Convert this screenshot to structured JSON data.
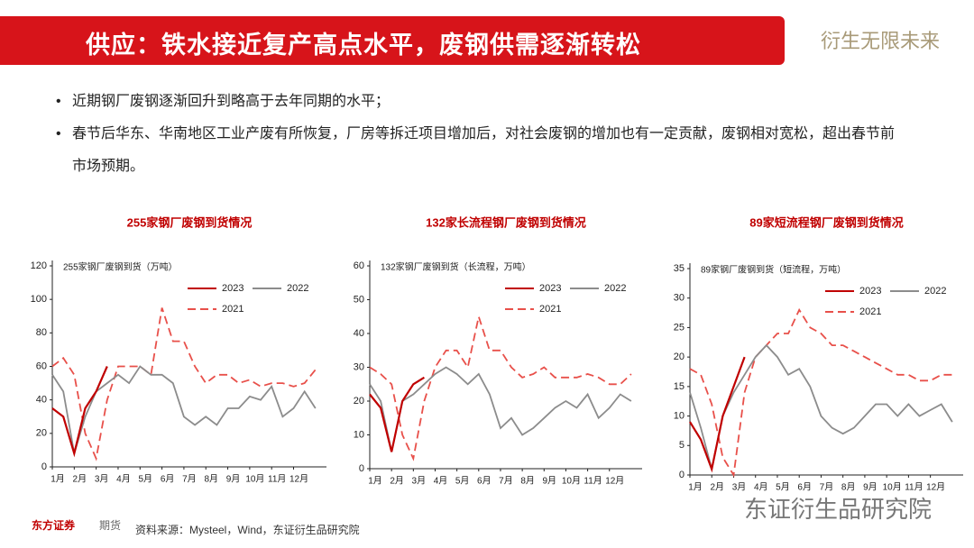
{
  "header": {
    "title": "供应：铁水接近复产高点水平，废钢供需逐渐转松",
    "slogan": "衍生无限未来"
  },
  "bullets": [
    "近期钢厂废钢逐渐回升到略高于去年同期的水平；",
    "春节后华东、华南地区工业产废有所恢复，厂房等拆迁项目增加后，对社会废钢的增加也有一定贡献，废钢相对宽松，超出春节前市场预期。"
  ],
  "chart_data": [
    {
      "type": "line",
      "title": "255家钢厂废钢到货情况",
      "subtitle": "255家钢厂废钢到货（万吨）",
      "x": [
        0,
        0.5,
        1,
        1.5,
        2,
        2.5,
        3,
        3.5,
        4,
        4.5,
        5,
        5.5,
        6,
        6.5,
        7,
        7.5,
        8,
        8.5,
        9,
        9.5,
        10,
        10.5,
        11,
        11.5,
        12
      ],
      "xlim": [
        0,
        12.5
      ],
      "xticks": [
        {
          "value": 0,
          "label": "1月"
        },
        {
          "value": 1,
          "label": "2月"
        },
        {
          "value": 2,
          "label": "3月"
        },
        {
          "value": 3,
          "label": "4月"
        },
        {
          "value": 4,
          "label": "5月"
        },
        {
          "value": 5,
          "label": "6月"
        },
        {
          "value": 6,
          "label": "7月"
        },
        {
          "value": 7,
          "label": "8月"
        },
        {
          "value": 8,
          "label": "9月"
        },
        {
          "value": 9,
          "label": "10月"
        },
        {
          "value": 10,
          "label": "11月"
        },
        {
          "value": 11,
          "label": "12月"
        }
      ],
      "ylim": [
        0,
        120
      ],
      "yticks": [
        0,
        20,
        40,
        60,
        80,
        100,
        120
      ],
      "series": [
        {
          "name": "2023",
          "color": "#c00000",
          "dash": false,
          "values": [
            35,
            30,
            8,
            35,
            45,
            60,
            null,
            null,
            null,
            null,
            null,
            null,
            null,
            null,
            null,
            null,
            null,
            null,
            null,
            null,
            null,
            null,
            null,
            null,
            null
          ]
        },
        {
          "name": "2022",
          "color": "#8c8c8c",
          "dash": false,
          "values": [
            55,
            45,
            8,
            30,
            45,
            50,
            55,
            50,
            60,
            55,
            55,
            50,
            30,
            25,
            30,
            25,
            35,
            35,
            42,
            40,
            48,
            30,
            35,
            45,
            35
          ]
        },
        {
          "name": "2021",
          "color": "#e8504a",
          "dash": true,
          "values": [
            60,
            65,
            55,
            20,
            5,
            40,
            60,
            60,
            60,
            55,
            95,
            75,
            75,
            60,
            50,
            55,
            55,
            50,
            52,
            48,
            50,
            50,
            48,
            50,
            58
          ]
        }
      ]
    },
    {
      "type": "line",
      "title": "132家长流程钢厂废钢到货情况",
      "subtitle": "132家钢厂废钢到货（长流程，万吨）",
      "x": [
        0,
        0.5,
        1,
        1.5,
        2,
        2.5,
        3,
        3.5,
        4,
        4.5,
        5,
        5.5,
        6,
        6.5,
        7,
        7.5,
        8,
        8.5,
        9,
        9.5,
        10,
        10.5,
        11,
        11.5,
        12
      ],
      "xlim": [
        0,
        12.5
      ],
      "xticks": [
        {
          "value": 0,
          "label": "1月"
        },
        {
          "value": 1,
          "label": "2月"
        },
        {
          "value": 2,
          "label": "3月"
        },
        {
          "value": 3,
          "label": "4月"
        },
        {
          "value": 4,
          "label": "5月"
        },
        {
          "value": 5,
          "label": "6月"
        },
        {
          "value": 6,
          "label": "7月"
        },
        {
          "value": 7,
          "label": "8月"
        },
        {
          "value": 8,
          "label": "9月"
        },
        {
          "value": 9,
          "label": "10月"
        },
        {
          "value": 10,
          "label": "11月"
        },
        {
          "value": 11,
          "label": "12月"
        }
      ],
      "ylim": [
        0,
        60
      ],
      "yticks": [
        0,
        10,
        20,
        30,
        40,
        50,
        60
      ],
      "series": [
        {
          "name": "2023",
          "color": "#c00000",
          "dash": false,
          "values": [
            22,
            18,
            5,
            20,
            25,
            27,
            null,
            null,
            null,
            null,
            null,
            null,
            null,
            null,
            null,
            null,
            null,
            null,
            null,
            null,
            null,
            null,
            null,
            null,
            null
          ]
        },
        {
          "name": "2022",
          "color": "#8c8c8c",
          "dash": false,
          "values": [
            25,
            20,
            5,
            20,
            22,
            25,
            28,
            30,
            28,
            25,
            28,
            22,
            12,
            15,
            10,
            12,
            15,
            18,
            20,
            18,
            22,
            15,
            18,
            22,
            20
          ]
        },
        {
          "name": "2021",
          "color": "#e8504a",
          "dash": true,
          "values": [
            30,
            28,
            25,
            10,
            3,
            20,
            30,
            35,
            35,
            30,
            45,
            35,
            35,
            30,
            27,
            28,
            30,
            27,
            27,
            27,
            28,
            27,
            25,
            25,
            28
          ]
        }
      ]
    },
    {
      "type": "line",
      "title": "89家短流程钢厂废钢到货情况",
      "subtitle": "89家钢厂废钢到货（短流程，万吨）",
      "x": [
        0,
        0.5,
        1,
        1.5,
        2,
        2.5,
        3,
        3.5,
        4,
        4.5,
        5,
        5.5,
        6,
        6.5,
        7,
        7.5,
        8,
        8.5,
        9,
        9.5,
        10,
        10.5,
        11,
        11.5,
        12
      ],
      "xlim": [
        0,
        12.5
      ],
      "xticks": [
        {
          "value": 0,
          "label": "1月"
        },
        {
          "value": 1,
          "label": "2月"
        },
        {
          "value": 2,
          "label": "3月"
        },
        {
          "value": 3,
          "label": "4月"
        },
        {
          "value": 4,
          "label": "5月"
        },
        {
          "value": 5,
          "label": "6月"
        },
        {
          "value": 6,
          "label": "7月"
        },
        {
          "value": 7,
          "label": "8月"
        },
        {
          "value": 8,
          "label": "9月"
        },
        {
          "value": 9,
          "label": "10月"
        },
        {
          "value": 10,
          "label": "11月"
        },
        {
          "value": 11,
          "label": "12月"
        }
      ],
      "ylim": [
        0,
        35
      ],
      "yticks": [
        0,
        5,
        10,
        15,
        20,
        25,
        30,
        35
      ],
      "series": [
        {
          "name": "2023",
          "color": "#c00000",
          "dash": false,
          "values": [
            9,
            6,
            1,
            10,
            15,
            20,
            null,
            null,
            null,
            null,
            null,
            null,
            null,
            null,
            null,
            null,
            null,
            null,
            null,
            null,
            null,
            null,
            null,
            null,
            null
          ]
        },
        {
          "name": "2022",
          "color": "#8c8c8c",
          "dash": false,
          "values": [
            14,
            8,
            1,
            10,
            14,
            17,
            20,
            22,
            20,
            17,
            18,
            15,
            10,
            8,
            7,
            8,
            10,
            12,
            12,
            10,
            12,
            10,
            11,
            12,
            9
          ]
        },
        {
          "name": "2021",
          "color": "#e8504a",
          "dash": true,
          "values": [
            18,
            17,
            12,
            3,
            0,
            14,
            20,
            22,
            24,
            24,
            28,
            25,
            24,
            22,
            22,
            21,
            20,
            19,
            18,
            17,
            17,
            16,
            16,
            17,
            17
          ]
        }
      ]
    }
  ],
  "source": "资料来源：Mysteel，Wind，东证衍生品研究院",
  "logo": "东方证券",
  "logo_sub": "期货",
  "watermark": "东证衍生品研究院"
}
